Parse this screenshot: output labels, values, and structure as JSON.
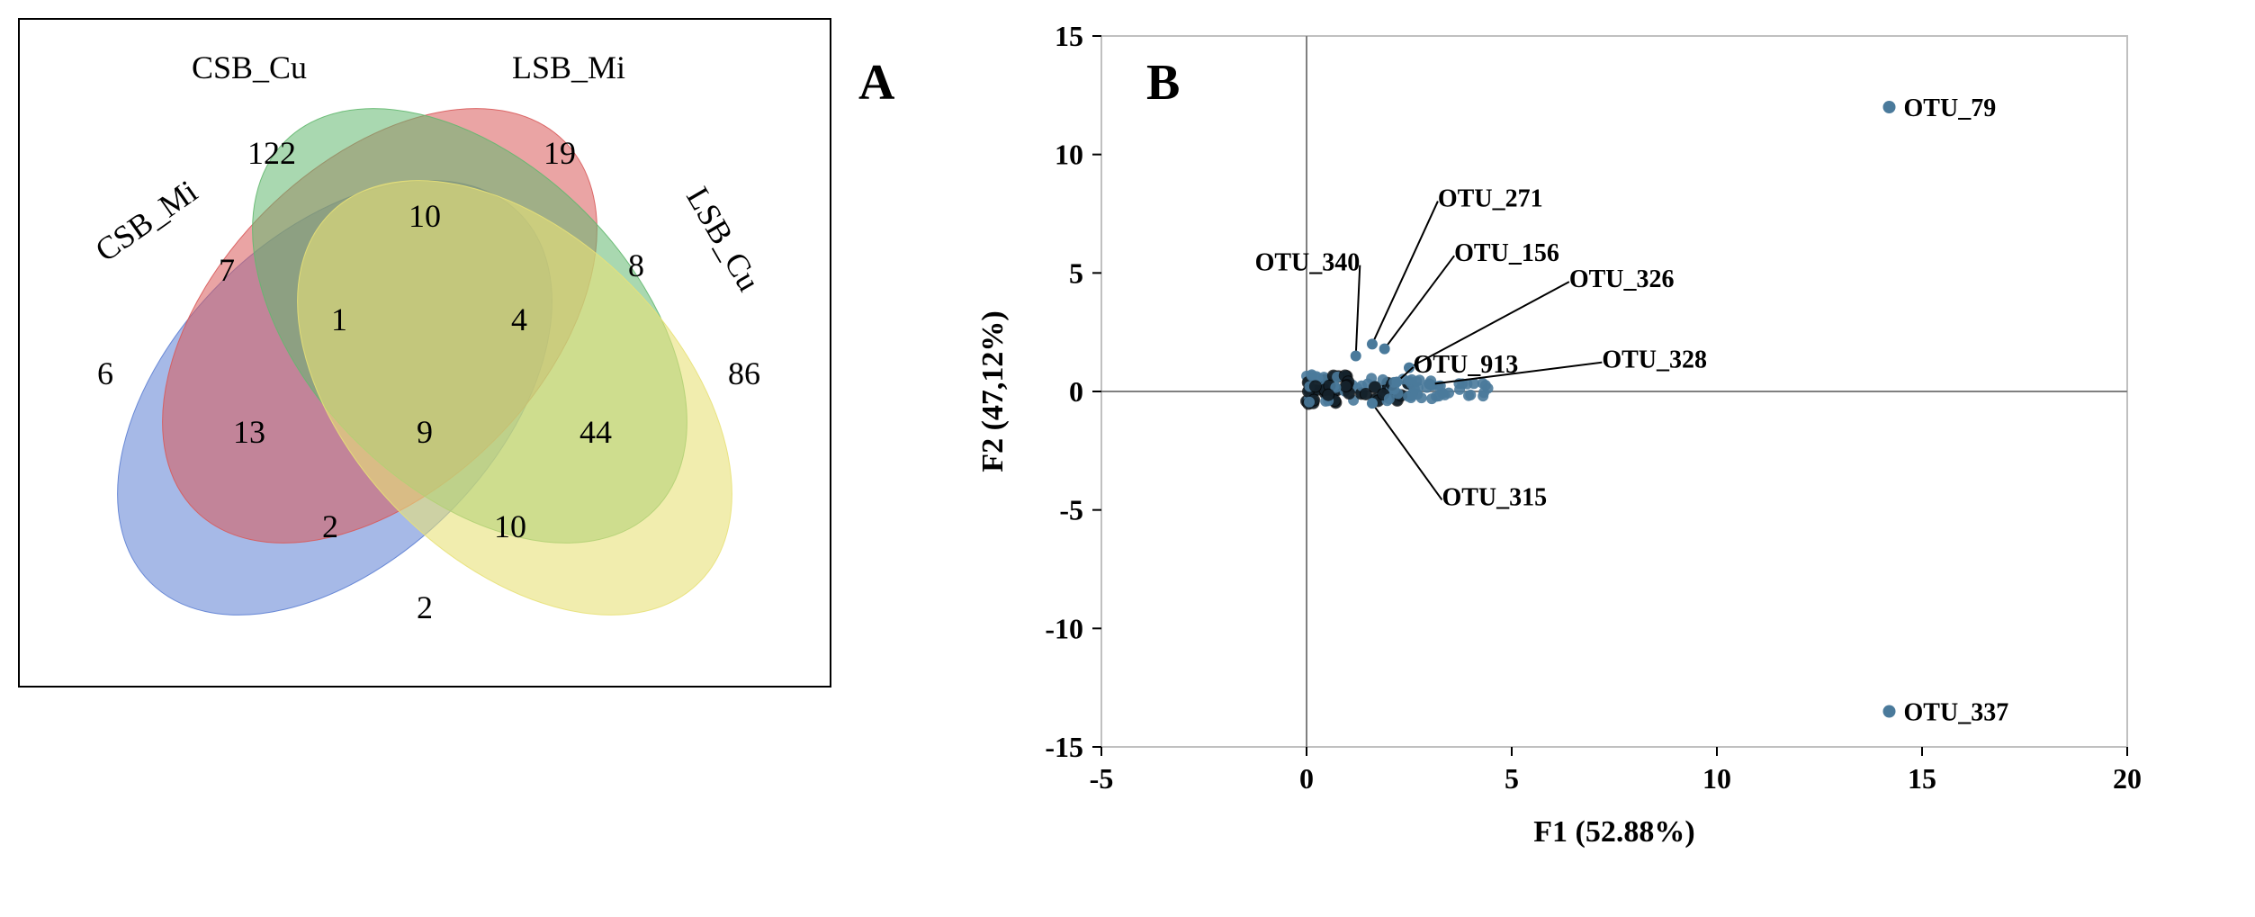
{
  "panelA": {
    "label": "A",
    "sets": {
      "csb_mi": {
        "label": "CSB_Mi",
        "fill": "#5d7fd3",
        "opacity": 0.55
      },
      "csb_cu": {
        "label": "CSB_Cu",
        "fill": "#d85a5a",
        "opacity": 0.55
      },
      "lsb_mi": {
        "label": "LSB_Mi",
        "fill": "#63b86f",
        "opacity": 0.55
      },
      "lsb_cu": {
        "label": "LSB_Cu",
        "fill": "#e8e178",
        "opacity": 0.6
      }
    },
    "regions": {
      "csb_mi_only": 6,
      "csb_cu_only": 122,
      "lsb_mi_only": 19,
      "lsb_cu_only": 86,
      "csb_mi_csb_cu": 7,
      "csb_cu_lsb_mi": 10,
      "lsb_mi_lsb_cu": 8,
      "csb_mi_lsb_cu": 2,
      "csb_mi_lsb_mi": 13,
      "csb_cu_lsb_cu": 44,
      "csb_mi_csb_cu_lsb_mi": 1,
      "csb_cu_lsb_mi_lsb_cu": 4,
      "csb_mi_lsb_mi_lsb_cu": 2,
      "csb_mi_csb_cu_lsb_cu": 10,
      "all": 9
    },
    "border": "#000000",
    "box_border": "#000000"
  },
  "panelB": {
    "label": "B",
    "title": "",
    "xaxis": {
      "label": "F1 (52.88%)",
      "min": -5,
      "max": 20,
      "ticks": [
        -5,
        0,
        5,
        10,
        15,
        20
      ]
    },
    "yaxis": {
      "label": "F2 (47,12%)",
      "min": -15,
      "max": 15,
      "ticks": [
        -15,
        -10,
        -5,
        0,
        5,
        10,
        15
      ]
    },
    "plot_border_color": "#c0c0c0",
    "axis_line_color": "#808080",
    "background": "#ffffff",
    "point_color": "#4a7a9b",
    "point_radius": 6,
    "cluster_color": "#000000",
    "far_points": [
      {
        "label": "OTU_79",
        "x": 14.2,
        "y": 12.0
      },
      {
        "label": "OTU_337",
        "x": 14.2,
        "y": -13.5
      }
    ],
    "labeled_near": [
      {
        "label": "OTU_271",
        "lx": 3.2,
        "ly": 7.8,
        "px": 1.6,
        "py": 2.0
      },
      {
        "label": "OTU_340",
        "lx": 1.3,
        "ly": 5.1,
        "px": 1.2,
        "py": 1.5,
        "anchor": "end"
      },
      {
        "label": "OTU_156",
        "lx": 3.6,
        "ly": 5.5,
        "px": 1.9,
        "py": 1.8
      },
      {
        "label": "OTU_326",
        "lx": 6.4,
        "ly": 4.4,
        "px": 2.5,
        "py": 1.0
      },
      {
        "label": "OTU_328",
        "lx": 7.2,
        "ly": 1.0,
        "px": 3.0,
        "py": 0.3
      },
      {
        "label": "OTU_913",
        "lx": 2.6,
        "ly": 0.8,
        "px": 2.2,
        "py": 0.4
      },
      {
        "label": "OTU_315",
        "lx": 3.3,
        "ly": -4.8,
        "px": 1.6,
        "py": -0.5
      }
    ],
    "cluster_band": {
      "xstart": 0,
      "xend": 4.5,
      "ymin": -0.8,
      "ymax": 1.2,
      "count": 120
    }
  }
}
